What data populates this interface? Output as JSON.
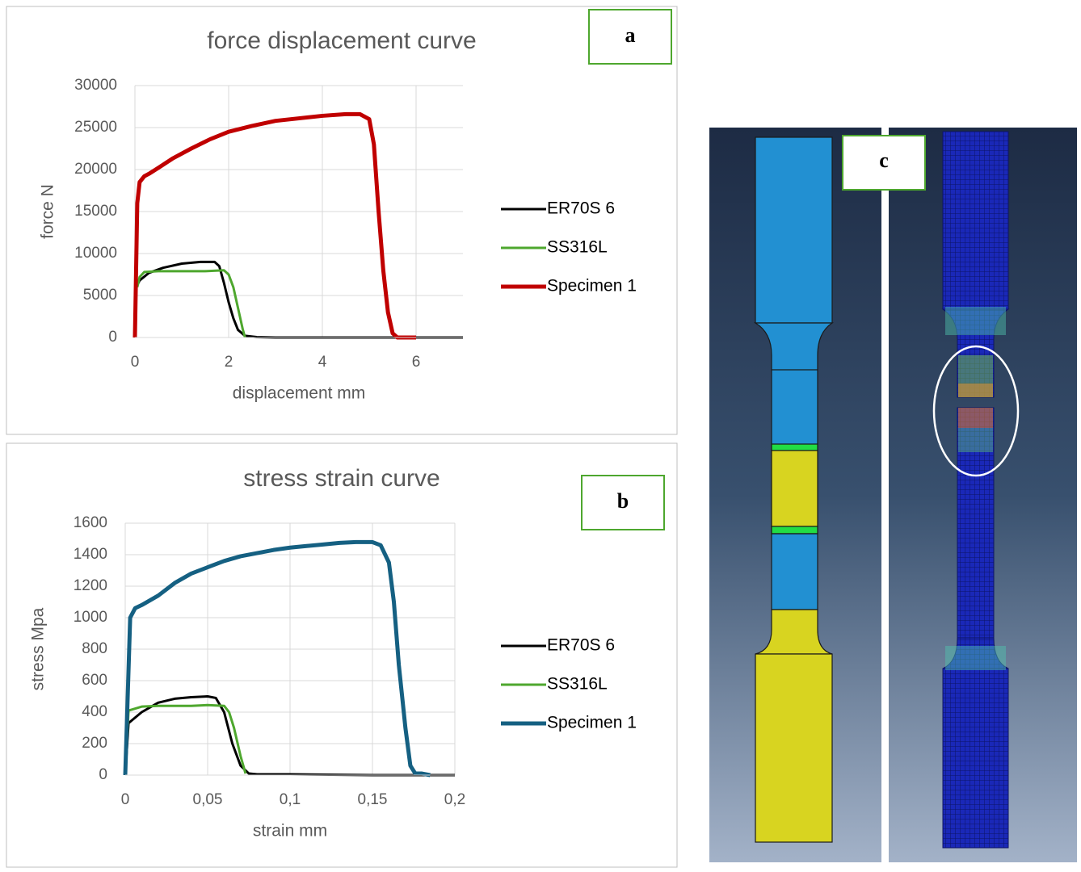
{
  "chart_data": [
    {
      "type": "line",
      "title": "force displacement curve",
      "panel_label": "a",
      "x_label": "displacement mm",
      "y_label": "force N",
      "xlim": [
        0,
        7
      ],
      "xticks": [
        0,
        2,
        4,
        6
      ],
      "ylim": [
        0,
        30000
      ],
      "yticks": [
        0,
        5000,
        10000,
        15000,
        20000,
        25000,
        30000
      ],
      "grid": true,
      "legend": "right",
      "series": [
        {
          "name": "ER70S 6",
          "color": "#000000",
          "x": [
            0,
            0.03,
            0.1,
            0.3,
            0.6,
            1,
            1.4,
            1.7,
            1.8,
            1.9,
            2.0,
            2.1,
            2.2,
            2.35,
            2.6,
            3,
            4,
            5,
            6,
            7
          ],
          "values": [
            0,
            6000,
            6800,
            7700,
            8300,
            8800,
            9000,
            9000,
            8500,
            6500,
            4200,
            2300,
            900,
            200,
            50,
            0,
            0,
            0,
            0,
            0
          ]
        },
        {
          "name": "SS316L",
          "color": "#4ea72e",
          "x": [
            0.05,
            0.1,
            0.2,
            0.5,
            1,
            1.5,
            1.9,
            2.0,
            2.1,
            2.2,
            2.3,
            2.35
          ],
          "values": [
            6000,
            7200,
            7800,
            7900,
            7900,
            7900,
            8000,
            7500,
            6000,
            3500,
            1000,
            0
          ]
        },
        {
          "name": "Specimen 1",
          "color": "#c00000",
          "x": [
            0,
            0.05,
            0.1,
            0.2,
            0.3,
            0.5,
            0.8,
            1.2,
            1.6,
            2.0,
            2.5,
            3.0,
            3.5,
            4.0,
            4.5,
            4.8,
            5.0,
            5.1,
            5.2,
            5.3,
            5.4,
            5.5,
            5.6,
            6.0
          ],
          "values": [
            0,
            16000,
            18500,
            19200,
            19500,
            20200,
            21300,
            22500,
            23600,
            24500,
            25200,
            25800,
            26100,
            26400,
            26600,
            26600,
            26000,
            23000,
            15000,
            8000,
            3000,
            500,
            0,
            0
          ]
        }
      ]
    },
    {
      "type": "line",
      "title": "stress strain curve",
      "panel_label": "b",
      "x_label": "strain mm",
      "y_label": "stress Mpa",
      "xlim": [
        0,
        0.2
      ],
      "xticks": [
        0,
        {
          "value": 0.05,
          "label": "0,05"
        },
        {
          "value": 0.1,
          "label": "0,1"
        },
        {
          "value": 0.15,
          "label": "0,15"
        },
        {
          "value": 0.2,
          "label": "0,2"
        }
      ],
      "ylim": [
        0,
        1600
      ],
      "yticks": [
        0,
        200,
        400,
        600,
        800,
        1000,
        1200,
        1400,
        1600
      ],
      "grid": true,
      "legend": "right",
      "series": [
        {
          "name": "ER70S 6",
          "color": "#000000",
          "x": [
            0,
            0.002,
            0.01,
            0.02,
            0.03,
            0.04,
            0.05,
            0.055,
            0.06,
            0.065,
            0.07,
            0.075,
            0.08,
            0.1,
            0.15,
            0.2
          ],
          "values": [
            0,
            330,
            400,
            460,
            485,
            495,
            500,
            490,
            400,
            200,
            60,
            10,
            5,
            5,
            0,
            0
          ]
        },
        {
          "name": "SS316L",
          "color": "#4ea72e",
          "x": [
            0,
            0.002,
            0.01,
            0.02,
            0.03,
            0.04,
            0.05,
            0.06,
            0.063,
            0.066,
            0.07,
            0.073
          ],
          "values": [
            0,
            410,
            435,
            440,
            440,
            440,
            445,
            440,
            400,
            300,
            120,
            10
          ]
        },
        {
          "name": "Specimen 1",
          "color": "#156082",
          "x": [
            0,
            0.003,
            0.006,
            0.01,
            0.02,
            0.03,
            0.04,
            0.05,
            0.06,
            0.07,
            0.08,
            0.09,
            0.1,
            0.11,
            0.12,
            0.13,
            0.14,
            0.15,
            0.155,
            0.16,
            0.163,
            0.166,
            0.17,
            0.173,
            0.176,
            0.18,
            0.185
          ],
          "values": [
            0,
            1000,
            1060,
            1080,
            1140,
            1220,
            1280,
            1320,
            1360,
            1390,
            1410,
            1430,
            1445,
            1455,
            1465,
            1475,
            1480,
            1480,
            1460,
            1350,
            1100,
            700,
            300,
            60,
            10,
            10,
            0
          ]
        }
      ]
    }
  ],
  "image_panel": {
    "label": "c"
  }
}
